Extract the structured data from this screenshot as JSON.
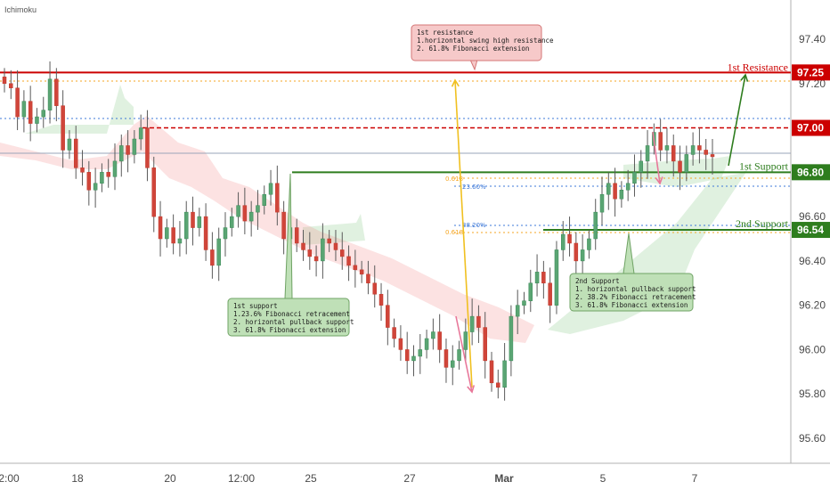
{
  "chart_data": {
    "type": "candlestick",
    "indicator": "Ichimoku",
    "ylim": [
      95.5,
      97.55
    ],
    "y_ticks": [
      "97.40",
      "97.20",
      "96.80",
      "96.60",
      "96.40",
      "96.20",
      "96.00",
      "95.80",
      "95.60"
    ],
    "x_ticks": [
      "2:00",
      "18",
      "20",
      "12:00",
      "25",
      "27",
      "Mar",
      "5",
      "7"
    ],
    "price_levels": [
      {
        "value": 97.25,
        "label": "97.25",
        "name": "1st Resistance",
        "color": "#cc0000"
      },
      {
        "value": 97.0,
        "label": "97.00",
        "color": "#cc0000"
      },
      {
        "value": 96.8,
        "label": "96.80",
        "name": "1st Support",
        "color": "#2e7d1e"
      },
      {
        "value": 96.54,
        "label": "96.54",
        "name": "2nd Support",
        "color": "#2e7d1e"
      }
    ],
    "fib_labels": [
      "0.618",
      "23.60%",
      "38.20%",
      "0.618"
    ],
    "annotations": {
      "resistance_box": [
        "1st resistance",
        "1.horizontal swing high resistance",
        "2. 61.8% Fibonacci extension"
      ],
      "support1_box": [
        "1st support",
        "1.23.6% Fibonacci retracement",
        "2. horizontal pullback support",
        "3. 61.8% Fibonacci extension"
      ],
      "support2_box": [
        "2nd Support",
        "1. horizontal pullback support",
        "2. 38.2% Fibonacci retracement",
        "3. 61.8% Fibonacci extension"
      ]
    },
    "series": [
      {
        "values": [
          97.2,
          97.18,
          97.05,
          97.12,
          97.02,
          97.05,
          97.08,
          97.22,
          97.1,
          96.9,
          96.95,
          96.82,
          96.8,
          96.72,
          96.75,
          96.8,
          96.78,
          96.85,
          96.92,
          96.88,
          96.95,
          97.0,
          96.82,
          96.6,
          96.5,
          96.55,
          96.48,
          96.5,
          96.62,
          96.55,
          96.6,
          96.45,
          96.38,
          96.5,
          96.55,
          96.6,
          96.65,
          96.58,
          96.62,
          96.65,
          96.7,
          96.75,
          96.62,
          96.5,
          96.55,
          96.48,
          96.45,
          96.42,
          96.4,
          96.5,
          96.48,
          96.45,
          96.42,
          96.38,
          96.36,
          96.34,
          96.3,
          96.25,
          96.2,
          96.1,
          96.05,
          96.0,
          95.95,
          95.97,
          96.0,
          96.05,
          96.08,
          96.0,
          95.92,
          95.95,
          96.0,
          96.08,
          96.15,
          96.1,
          95.95,
          95.85,
          95.83,
          95.95,
          96.15,
          96.2,
          96.22,
          96.3,
          96.35,
          96.3,
          96.2,
          96.45,
          96.52,
          96.48,
          96.4,
          96.45,
          96.5,
          96.62,
          96.7,
          96.75,
          96.68,
          96.72,
          96.75,
          96.8,
          96.85,
          96.92,
          96.98,
          96.9,
          96.92,
          96.85,
          96.8,
          96.88,
          96.92,
          96.9,
          96.88,
          96.87
        ]
      }
    ]
  }
}
